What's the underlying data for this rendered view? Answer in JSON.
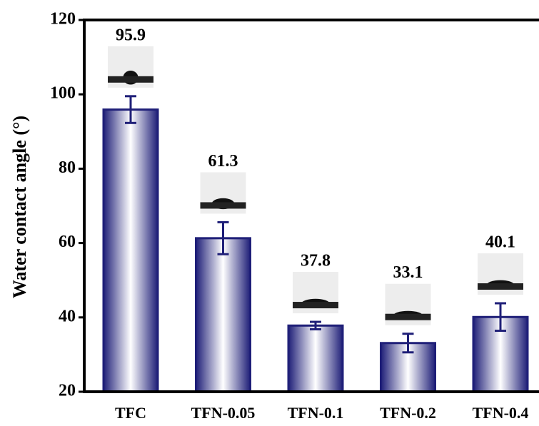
{
  "chart_data": {
    "type": "bar",
    "y_label": "Water contact angle (°)",
    "categories": [
      "TFC",
      "TFN-0.05",
      "TFN-0.1",
      "TFN-0.2",
      "TFN-0.4"
    ],
    "values": [
      95.9,
      61.3,
      37.8,
      33.1,
      40.1
    ],
    "errors": [
      3.6,
      4.3,
      1.0,
      2.5,
      3.7
    ],
    "color": "#1f1f78",
    "ylim": [
      20,
      120
    ],
    "yticks": [
      20,
      40,
      60,
      80,
      100,
      120
    ]
  }
}
